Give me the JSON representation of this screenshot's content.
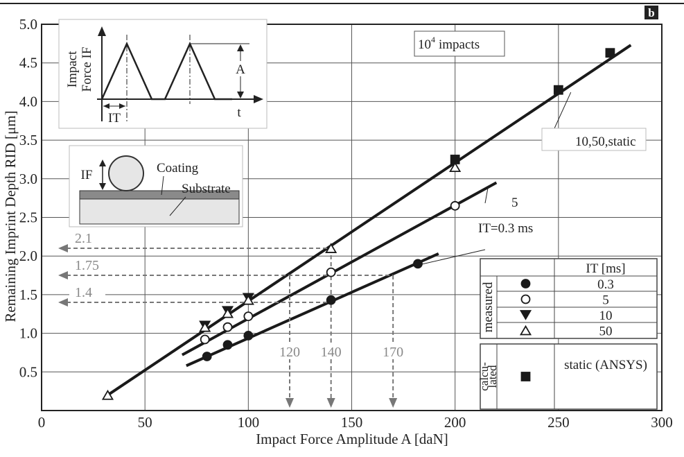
{
  "chart_data": {
    "type": "scatter",
    "panel_label": "b",
    "x_label": "Impact Force Amplitude A [daN]",
    "y_label": "Remaining Imprint Depth RID [μm]",
    "xlim": [
      0,
      300
    ],
    "ylim": [
      0,
      5
    ],
    "xticks": [
      0,
      50,
      100,
      150,
      200,
      250,
      300
    ],
    "yticks": [
      0.5,
      {
        "value": 1,
        "label": "1.0"
      },
      1.5,
      {
        "value": 2,
        "label": "2.0"
      },
      2.5,
      {
        "value": 3,
        "label": "3.0"
      },
      3.5,
      {
        "value": 4,
        "label": "4.0"
      },
      4.5,
      {
        "value": 5,
        "label": "5.0"
      }
    ],
    "grid": true,
    "color": "#1a1a1a",
    "series": [
      {
        "name": "0.3",
        "marker": "circle-filled",
        "x": [
          80,
          90,
          100,
          140,
          182
        ],
        "values": [
          0.7,
          0.85,
          0.97,
          1.43,
          1.9
        ]
      },
      {
        "name": "5",
        "marker": "circle-open",
        "x": [
          79,
          90,
          100,
          140,
          200
        ],
        "values": [
          0.92,
          1.08,
          1.22,
          1.79,
          2.65
        ]
      },
      {
        "name": "10",
        "marker": "triangle-down-filled",
        "x": [
          79,
          90,
          100
        ],
        "values": [
          1.1,
          1.29,
          1.46
        ]
      },
      {
        "name": "50",
        "marker": "triangle-up-open",
        "x": [
          32,
          79,
          90,
          100,
          140,
          200
        ],
        "values": [
          0.2,
          1.08,
          1.26,
          1.43,
          2.1,
          3.15
        ]
      },
      {
        "name": "static (ANSYS)",
        "marker": "square-filled",
        "x": [
          200,
          250,
          275
        ],
        "values": [
          3.25,
          4.15,
          4.63
        ]
      }
    ],
    "fits": [
      {
        "x": [
          32,
          285
        ],
        "values": [
          0.2,
          4.73
        ],
        "label": "10,50,static"
      },
      {
        "x": [
          68,
          220
        ],
        "values": [
          0.72,
          2.95
        ],
        "label": "5"
      },
      {
        "x": [
          70,
          192
        ],
        "values": [
          0.58,
          2.03
        ],
        "label": "IT=0.3 ms"
      }
    ],
    "h_guides": [
      {
        "value": 2.1,
        "x_to": 140
      },
      {
        "value": 1.75,
        "x_to": 170
      },
      {
        "value": 1.4,
        "x_to": 140
      }
    ],
    "v_guides": [
      {
        "value": 120,
        "y_from": 1.75
      },
      {
        "value": 140,
        "y_from": 2.1
      },
      {
        "value": 170,
        "y_from": 1.75
      }
    ],
    "impacts": {
      "base": "10",
      "exponent": "4",
      "text": "impacts"
    },
    "legend": {
      "header": "IT [ms]",
      "measured": "measured",
      "calculated": [
        "calcu-",
        "lated"
      ]
    }
  },
  "insets": {
    "force_plot": {
      "y_label": [
        "Impact",
        "Force IF"
      ],
      "amplitude": "A",
      "time": "t",
      "period": "IT"
    },
    "specimen": {
      "force": "IF",
      "coating": "Coating",
      "substrate": "Substrate"
    }
  }
}
